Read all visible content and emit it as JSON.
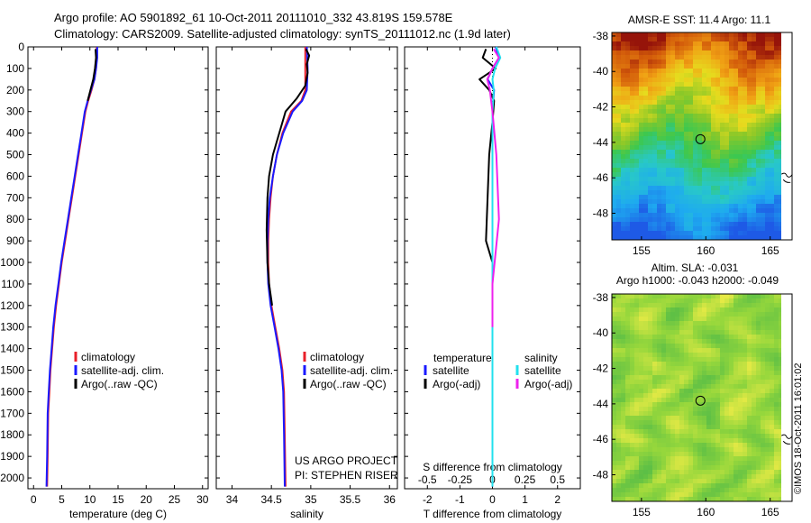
{
  "header": {
    "line1": "Argo profile: AO 5901892_61 10-Oct-2011 20111010_332 43.819S 159.578E",
    "line2": "Climatology: CARS2009. Satellite-adjusted climatology: synTS_20111012.nc (1.9d later)"
  },
  "watermark": "©IMOS 18-Oct-2011 16:01:02",
  "colors": {
    "climatology": "#e8202a",
    "satellite": "#1a1aff",
    "argo": "#000000",
    "sal_satellite": "#22e0ee",
    "sal_argo": "#ee22ee"
  },
  "chart_data": [
    {
      "type": "line",
      "name": "temperature-profile",
      "xlabel": "temperature (deg C)",
      "xlim": [
        -1,
        31
      ],
      "xticks": [
        0,
        5,
        10,
        15,
        20,
        25,
        30
      ],
      "ylim": [
        0,
        2050
      ],
      "yticks": [
        0,
        100,
        200,
        300,
        400,
        500,
        600,
        700,
        800,
        900,
        1000,
        1100,
        1200,
        1300,
        1400,
        1500,
        1600,
        1700,
        1800,
        1900,
        2000
      ],
      "legend": [
        "climatology",
        "satellite-adj. clim.",
        "Argo(..raw -QC)"
      ],
      "series": [
        {
          "name": "climatology",
          "color": "#e8202a",
          "x": [
            11.2,
            11.2,
            11.1,
            10.8,
            10.3,
            9.7,
            9.2,
            8.6,
            8.0,
            7.4,
            6.8,
            6.2,
            5.6,
            5.0,
            4.5,
            4.0,
            3.6,
            3.3,
            3.0,
            2.8,
            2.6,
            2.5,
            2.4
          ],
          "y": [
            0,
            50,
            100,
            150,
            200,
            250,
            300,
            400,
            500,
            600,
            700,
            800,
            900,
            1000,
            1100,
            1200,
            1300,
            1400,
            1500,
            1600,
            1700,
            1900,
            2040
          ]
        },
        {
          "name": "satellite-adj. clim.",
          "color": "#1a1aff",
          "x": [
            11.3,
            11.3,
            11.1,
            10.8,
            10.2,
            9.6,
            9.1,
            8.5,
            7.9,
            7.3,
            6.7,
            6.1,
            5.5,
            4.9,
            4.4,
            3.9,
            3.5,
            3.2,
            2.9,
            2.7,
            2.5,
            2.4,
            2.3
          ],
          "y": [
            0,
            50,
            100,
            150,
            200,
            250,
            300,
            400,
            500,
            600,
            700,
            800,
            900,
            1000,
            1100,
            1200,
            1300,
            1400,
            1500,
            1600,
            1700,
            1900,
            2040
          ]
        },
        {
          "name": "Argo(..raw -QC)",
          "color": "#000000",
          "x": [
            11.0,
            11.1,
            10.9,
            10.6,
            10.1,
            9.6
          ],
          "y": [
            10,
            50,
            100,
            150,
            200,
            250
          ]
        }
      ]
    },
    {
      "type": "line",
      "name": "salinity-profile",
      "xlabel": "salinity",
      "xlim": [
        33.8,
        36.1
      ],
      "xticks": [
        34,
        34.5,
        35,
        35.5,
        36
      ],
      "xticklabels": [
        "34",
        "34.5",
        "35",
        "35.5",
        "36"
      ],
      "ylim": [
        0,
        2050
      ],
      "legend": [
        "climatology",
        "satellite-adj. clim.",
        "Argo(..raw -QC)"
      ],
      "annotation": [
        "US ARGO PROJECT",
        "PI: STEPHEN RISER"
      ],
      "series": [
        {
          "name": "climatology",
          "color": "#e8202a",
          "x": [
            34.93,
            34.93,
            34.93,
            34.88,
            34.75,
            34.64,
            34.57,
            34.52,
            34.49,
            34.47,
            34.46,
            34.46,
            34.47,
            34.5,
            34.55,
            34.6,
            34.64,
            34.66,
            34.67,
            34.68
          ],
          "y": [
            0,
            100,
            200,
            250,
            300,
            400,
            500,
            600,
            700,
            800,
            900,
            1000,
            1100,
            1200,
            1300,
            1400,
            1500,
            1600,
            1800,
            2040
          ]
        },
        {
          "name": "satellite-adj. clim.",
          "color": "#1a1aff",
          "x": [
            34.95,
            34.96,
            34.95,
            34.89,
            34.77,
            34.65,
            34.57,
            34.52,
            34.48,
            34.46,
            34.45,
            34.45,
            34.46,
            34.49,
            34.54,
            34.59,
            34.63,
            34.65,
            34.66,
            34.67
          ],
          "y": [
            0,
            100,
            200,
            250,
            300,
            400,
            500,
            600,
            700,
            800,
            900,
            1000,
            1100,
            1200,
            1300,
            1400,
            1500,
            1600,
            1800,
            2040
          ]
        },
        {
          "name": "Argo(..raw -QC)",
          "color": "#000000",
          "x": [
            34.94,
            34.98,
            34.95,
            34.96,
            34.93,
            34.82,
            34.68,
            34.6,
            34.52,
            34.47,
            34.45,
            34.44,
            34.45,
            34.47,
            34.51
          ],
          "y": [
            10,
            40,
            80,
            120,
            180,
            240,
            300,
            400,
            500,
            600,
            700,
            850,
            1000,
            1100,
            1200
          ]
        }
      ]
    },
    {
      "type": "line",
      "name": "difference-from-climatology",
      "xlabel": "T difference from climatology",
      "x2label": "S difference from climatology",
      "xlim": [
        -2.7,
        2.7
      ],
      "xticks": [
        -2,
        -1,
        0,
        1,
        2
      ],
      "xticklabels": [
        "-2",
        "-1",
        "0",
        "1",
        "2"
      ],
      "x2ticks": [
        -0.5,
        -0.25,
        0,
        0.25,
        0.5
      ],
      "x2ticklabels": [
        "-0.5",
        "-0.25",
        "0",
        "0.25",
        "0.5"
      ],
      "ylim": [
        0,
        2050
      ],
      "legend_temperature_title": "temperature",
      "legend_salinity_title": "salinity",
      "legend": [
        "satellite",
        "Argo(-adj)",
        "satellite",
        "Argo(-adj)"
      ],
      "series": [
        {
          "name": "T satellite",
          "color": "#1a1aff",
          "x": [
            0.1,
            0.2,
            0.0,
            -0.15,
            0.05,
            0.0,
            0.0,
            0.0,
            0.0,
            0.0,
            0.0
          ],
          "y": [
            0,
            50,
            100,
            150,
            200,
            300,
            500,
            800,
            1200,
            1600,
            2040
          ]
        },
        {
          "name": "T Argo(-adj)",
          "color": "#000000",
          "x": [
            -0.2,
            -0.3,
            0.1,
            -0.4,
            -0.1,
            0.05,
            0.0,
            -0.1,
            -0.2,
            0.0,
            0.0,
            0.0
          ],
          "y": [
            10,
            50,
            100,
            150,
            200,
            250,
            350,
            500,
            900,
            1000,
            1200,
            1300
          ]
        },
        {
          "name": "S satellite",
          "color": "#22e0ee",
          "x": [
            0.03,
            0.06,
            0.02,
            0.0,
            0.01,
            0.0,
            0.0,
            0.0,
            0.0,
            0.0,
            0.0
          ],
          "y": [
            0,
            50,
            100,
            150,
            200,
            300,
            500,
            800,
            1200,
            1600,
            2040
          ]
        },
        {
          "name": "S Argo(-adj)",
          "color": "#ee22ee",
          "x": [
            0.01,
            0.05,
            0.0,
            -0.04,
            -0.02,
            0.0,
            0.03,
            0.05,
            0.0,
            0.0
          ],
          "y": [
            10,
            50,
            100,
            150,
            200,
            300,
            500,
            800,
            1100,
            1300
          ]
        }
      ]
    },
    {
      "type": "heatmap",
      "name": "sst-map",
      "title": "AMSR-E SST: 11.4 Argo: 11.1",
      "xlim": [
        152.7,
        166.7
      ],
      "ylim": [
        -49.5,
        -37.8
      ],
      "xticks": [
        155,
        160,
        165
      ],
      "yticks": [
        -38,
        -40,
        -42,
        -44,
        -46,
        -48
      ],
      "marker": {
        "lon": 159.578,
        "lat": -43.819
      }
    },
    {
      "type": "heatmap",
      "name": "sla-map",
      "title": "Altim. SLA: -0.031",
      "subtitle": "Argo h1000: -0.043 h2000: -0.049",
      "xlim": [
        152.7,
        166.7
      ],
      "ylim": [
        -49.5,
        -37.8
      ],
      "xticks": [
        155,
        160,
        165
      ],
      "yticks": [
        -38,
        -40,
        -42,
        -44,
        -46,
        -48
      ],
      "marker": {
        "lon": 159.578,
        "lat": -43.819
      }
    }
  ]
}
